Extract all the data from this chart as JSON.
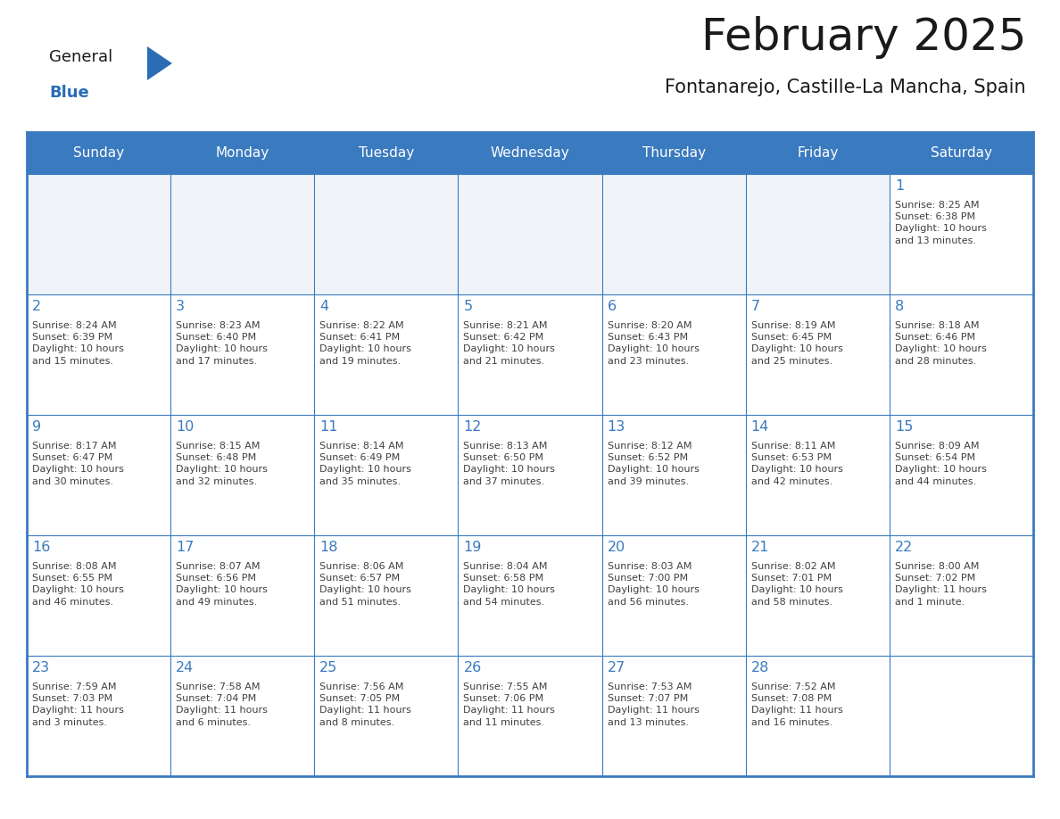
{
  "title": "February 2025",
  "subtitle": "Fontanarejo, Castille-La Mancha, Spain",
  "header_bg_color": "#3a7abf",
  "header_text_color": "#ffffff",
  "cell_bg_white": "#ffffff",
  "cell_bg_gray": "#f0f4f8",
  "grid_color": "#3a7abf",
  "title_color": "#1a1a1a",
  "subtitle_color": "#1a1a1a",
  "day_num_color": "#3a7abf",
  "cell_text_color": "#404040",
  "logo_general_color": "#1a1a1a",
  "logo_blue_color": "#2a6db5",
  "day_headers": [
    "Sunday",
    "Monday",
    "Tuesday",
    "Wednesday",
    "Thursday",
    "Friday",
    "Saturday"
  ],
  "weeks": [
    [
      {
        "day": null,
        "info": null
      },
      {
        "day": null,
        "info": null
      },
      {
        "day": null,
        "info": null
      },
      {
        "day": null,
        "info": null
      },
      {
        "day": null,
        "info": null
      },
      {
        "day": null,
        "info": null
      },
      {
        "day": "1",
        "info": "Sunrise: 8:25 AM\nSunset: 6:38 PM\nDaylight: 10 hours\nand 13 minutes."
      }
    ],
    [
      {
        "day": "2",
        "info": "Sunrise: 8:24 AM\nSunset: 6:39 PM\nDaylight: 10 hours\nand 15 minutes."
      },
      {
        "day": "3",
        "info": "Sunrise: 8:23 AM\nSunset: 6:40 PM\nDaylight: 10 hours\nand 17 minutes."
      },
      {
        "day": "4",
        "info": "Sunrise: 8:22 AM\nSunset: 6:41 PM\nDaylight: 10 hours\nand 19 minutes."
      },
      {
        "day": "5",
        "info": "Sunrise: 8:21 AM\nSunset: 6:42 PM\nDaylight: 10 hours\nand 21 minutes."
      },
      {
        "day": "6",
        "info": "Sunrise: 8:20 AM\nSunset: 6:43 PM\nDaylight: 10 hours\nand 23 minutes."
      },
      {
        "day": "7",
        "info": "Sunrise: 8:19 AM\nSunset: 6:45 PM\nDaylight: 10 hours\nand 25 minutes."
      },
      {
        "day": "8",
        "info": "Sunrise: 8:18 AM\nSunset: 6:46 PM\nDaylight: 10 hours\nand 28 minutes."
      }
    ],
    [
      {
        "day": "9",
        "info": "Sunrise: 8:17 AM\nSunset: 6:47 PM\nDaylight: 10 hours\nand 30 minutes."
      },
      {
        "day": "10",
        "info": "Sunrise: 8:15 AM\nSunset: 6:48 PM\nDaylight: 10 hours\nand 32 minutes."
      },
      {
        "day": "11",
        "info": "Sunrise: 8:14 AM\nSunset: 6:49 PM\nDaylight: 10 hours\nand 35 minutes."
      },
      {
        "day": "12",
        "info": "Sunrise: 8:13 AM\nSunset: 6:50 PM\nDaylight: 10 hours\nand 37 minutes."
      },
      {
        "day": "13",
        "info": "Sunrise: 8:12 AM\nSunset: 6:52 PM\nDaylight: 10 hours\nand 39 minutes."
      },
      {
        "day": "14",
        "info": "Sunrise: 8:11 AM\nSunset: 6:53 PM\nDaylight: 10 hours\nand 42 minutes."
      },
      {
        "day": "15",
        "info": "Sunrise: 8:09 AM\nSunset: 6:54 PM\nDaylight: 10 hours\nand 44 minutes."
      }
    ],
    [
      {
        "day": "16",
        "info": "Sunrise: 8:08 AM\nSunset: 6:55 PM\nDaylight: 10 hours\nand 46 minutes."
      },
      {
        "day": "17",
        "info": "Sunrise: 8:07 AM\nSunset: 6:56 PM\nDaylight: 10 hours\nand 49 minutes."
      },
      {
        "day": "18",
        "info": "Sunrise: 8:06 AM\nSunset: 6:57 PM\nDaylight: 10 hours\nand 51 minutes."
      },
      {
        "day": "19",
        "info": "Sunrise: 8:04 AM\nSunset: 6:58 PM\nDaylight: 10 hours\nand 54 minutes."
      },
      {
        "day": "20",
        "info": "Sunrise: 8:03 AM\nSunset: 7:00 PM\nDaylight: 10 hours\nand 56 minutes."
      },
      {
        "day": "21",
        "info": "Sunrise: 8:02 AM\nSunset: 7:01 PM\nDaylight: 10 hours\nand 58 minutes."
      },
      {
        "day": "22",
        "info": "Sunrise: 8:00 AM\nSunset: 7:02 PM\nDaylight: 11 hours\nand 1 minute."
      }
    ],
    [
      {
        "day": "23",
        "info": "Sunrise: 7:59 AM\nSunset: 7:03 PM\nDaylight: 11 hours\nand 3 minutes."
      },
      {
        "day": "24",
        "info": "Sunrise: 7:58 AM\nSunset: 7:04 PM\nDaylight: 11 hours\nand 6 minutes."
      },
      {
        "day": "25",
        "info": "Sunrise: 7:56 AM\nSunset: 7:05 PM\nDaylight: 11 hours\nand 8 minutes."
      },
      {
        "day": "26",
        "info": "Sunrise: 7:55 AM\nSunset: 7:06 PM\nDaylight: 11 hours\nand 11 minutes."
      },
      {
        "day": "27",
        "info": "Sunrise: 7:53 AM\nSunset: 7:07 PM\nDaylight: 11 hours\nand 13 minutes."
      },
      {
        "day": "28",
        "info": "Sunrise: 7:52 AM\nSunset: 7:08 PM\nDaylight: 11 hours\nand 16 minutes."
      },
      {
        "day": null,
        "info": null
      }
    ]
  ],
  "fig_width": 11.88,
  "fig_height": 9.18,
  "dpi": 100
}
